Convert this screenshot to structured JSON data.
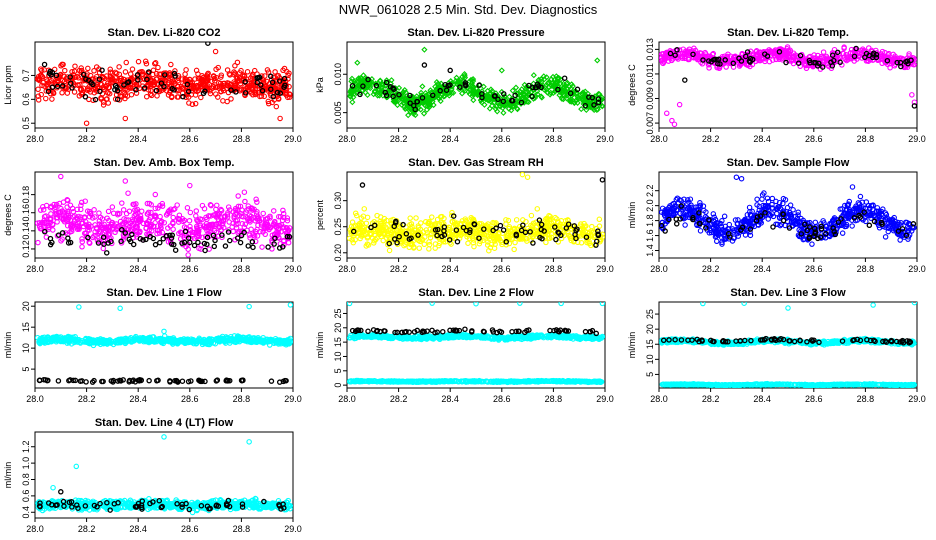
{
  "figure_title": "NWR_061028  2.5 Min. Std. Dev. Diagnostics",
  "colors": {
    "red": "#ff0000",
    "green": "#00cc00",
    "magenta": "#ff00ff",
    "yellow": "#ffff00",
    "blue": "#0000ff",
    "cyan": "#00ffff",
    "black": "#000000"
  },
  "chart_data": [
    {
      "type": "scatter",
      "title": "Stan. Dev. Li-820 CO2",
      "ylabel": "Licor ppm",
      "xlim": [
        28.0,
        29.0
      ],
      "ylim": [
        0.48,
        0.84
      ],
      "x_ticks": [
        "28.0",
        "28.2",
        "28.4",
        "28.6",
        "28.8",
        "29.0"
      ],
      "y_ticks": [
        "0.5",
        "0.6",
        "0.7"
      ],
      "y_tick_values": [
        0.5,
        0.6,
        0.7
      ],
      "series": [
        {
          "name": "main",
          "color": "red",
          "shape": "hex",
          "n": 700,
          "base": 0.665,
          "amp": 0.012,
          "noise": 0.055,
          "outliers": [
            [
              28.2,
              0.5
            ],
            [
              28.35,
              0.52
            ],
            [
              28.7,
              0.8
            ],
            [
              28.95,
              0.52
            ]
          ]
        },
        {
          "name": "black",
          "color": "black",
          "shape": "ring",
          "n": 70,
          "base": 0.665,
          "amp": 0.01,
          "noise": 0.05,
          "outliers": [
            [
              28.67,
              0.835
            ]
          ]
        }
      ]
    },
    {
      "type": "scatter",
      "title": "Stan. Dev. Li-820 Pressure",
      "ylabel": "kPa",
      "xlim": [
        28.0,
        29.0
      ],
      "ylim": [
        0.003,
        0.0142
      ],
      "x_ticks": [
        "28.0",
        "28.2",
        "28.4",
        "28.6",
        "28.8",
        "29.0"
      ],
      "y_ticks": [
        "0.005",
        "0.010"
      ],
      "y_tick_values": [
        0.005,
        0.01
      ],
      "series": [
        {
          "name": "main",
          "color": "green",
          "shape": "diamond",
          "n": 700,
          "base": 0.0075,
          "amp": 0.0012,
          "noise": 0.0011,
          "outliers": [
            [
              28.04,
              0.0115
            ],
            [
              28.3,
              0.0132
            ],
            [
              28.97,
              0.0118
            ],
            [
              28.6,
              0.0105
            ]
          ]
        },
        {
          "name": "black",
          "color": "black",
          "shape": "ring",
          "n": 60,
          "base": 0.0075,
          "amp": 0.001,
          "noise": 0.001,
          "outliers": [
            [
              28.3,
              0.0112
            ],
            [
              28.4,
              0.0105
            ]
          ]
        }
      ]
    },
    {
      "type": "scatter",
      "title": "Stan. Dev. Li-820 Temp.",
      "ylabel": "degrees C",
      "xlim": [
        28.0,
        29.0
      ],
      "ylim": [
        0.0066,
        0.0136
      ],
      "x_ticks": [
        "28.0",
        "28.2",
        "28.4",
        "28.6",
        "28.8",
        "29.0"
      ],
      "y_ticks": [
        "0.007",
        "0.009",
        "0.011",
        "0.013"
      ],
      "y_tick_values": [
        0.007,
        0.009,
        0.011,
        0.013
      ],
      "series": [
        {
          "name": "main",
          "color": "magenta",
          "shape": "hex",
          "n": 650,
          "base": 0.0123,
          "amp": 0.0003,
          "noise": 0.00045,
          "outliers": [
            [
              28.05,
              0.0072
            ],
            [
              28.06,
              0.0069
            ],
            [
              28.03,
              0.0078
            ],
            [
              28.99,
              0.0087
            ],
            [
              28.98,
              0.0093
            ],
            [
              28.08,
              0.0085
            ]
          ]
        },
        {
          "name": "black",
          "color": "black",
          "shape": "ring",
          "n": 60,
          "base": 0.0123,
          "amp": 0.0003,
          "noise": 0.0004,
          "outliers": [
            [
              28.99,
              0.0084
            ],
            [
              28.1,
              0.0105
            ]
          ]
        }
      ]
    },
    {
      "type": "scatter",
      "title": "Stan. Dev. Amb. Box Temp.",
      "ylabel": "degrees C",
      "xlim": [
        28.0,
        29.0
      ],
      "ylim": [
        0.11,
        0.205
      ],
      "x_ticks": [
        "28.0",
        "28.2",
        "28.4",
        "28.6",
        "28.8",
        "29.0"
      ],
      "y_ticks": [
        "0.12",
        "0.14",
        "0.16",
        "0.18"
      ],
      "y_tick_values": [
        0.12,
        0.14,
        0.16,
        0.18
      ],
      "series": [
        {
          "name": "main",
          "color": "magenta",
          "shape": "hex",
          "n": 650,
          "base": 0.148,
          "amp": 0.006,
          "noise": 0.018,
          "outliers": [
            [
              28.1,
              0.2
            ],
            [
              28.35,
              0.195
            ],
            [
              28.6,
              0.19
            ]
          ]
        },
        {
          "name": "black",
          "color": "black",
          "shape": "ring",
          "n": 70,
          "base": 0.13,
          "amp": 0.004,
          "noise": 0.01,
          "outliers": []
        }
      ]
    },
    {
      "type": "scatter",
      "title": "Stan. Dev. Gas Stream RH",
      "ylabel": "percent",
      "xlim": [
        28.0,
        29.0
      ],
      "ylim": [
        0.19,
        0.355
      ],
      "x_ticks": [
        "28.0",
        "28.2",
        "28.4",
        "28.6",
        "28.8",
        "29.0"
      ],
      "y_ticks": [
        "0.20",
        "0.25",
        "0.30"
      ],
      "y_tick_values": [
        0.2,
        0.25,
        0.3
      ],
      "series": [
        {
          "name": "main",
          "color": "yellow",
          "shape": "hex",
          "n": 700,
          "base": 0.24,
          "amp": 0.006,
          "noise": 0.022,
          "outliers": [
            [
              28.68,
              0.35
            ],
            [
              28.7,
              0.345
            ]
          ]
        },
        {
          "name": "black",
          "color": "black",
          "shape": "ring",
          "n": 70,
          "base": 0.24,
          "amp": 0.005,
          "noise": 0.02,
          "outliers": [
            [
              28.06,
              0.33
            ],
            [
              28.99,
              0.34
            ]
          ]
        }
      ]
    },
    {
      "type": "scatter",
      "title": "Stan. Dev. Sample Flow",
      "ylabel": "ml/min",
      "xlim": [
        28.0,
        29.0
      ],
      "ylim": [
        1.3,
        2.45
      ],
      "x_ticks": [
        "28.0",
        "28.2",
        "28.4",
        "28.6",
        "28.8",
        "29.0"
      ],
      "y_ticks": [
        "1.4",
        "1.6",
        "1.8",
        "2.0",
        "2.2"
      ],
      "y_tick_values": [
        1.4,
        1.6,
        1.8,
        2.0,
        2.2
      ],
      "series": [
        {
          "name": "main",
          "color": "blue",
          "shape": "hex",
          "n": 650,
          "base": 1.8,
          "amp": 0.15,
          "noise": 0.14,
          "outliers": [
            [
              28.3,
              2.38
            ],
            [
              28.32,
              2.36
            ],
            [
              28.75,
              2.25
            ]
          ]
        },
        {
          "name": "black",
          "color": "black",
          "shape": "ring",
          "n": 60,
          "base": 1.75,
          "amp": 0.12,
          "noise": 0.12,
          "outliers": []
        }
      ]
    },
    {
      "type": "scatter",
      "title": "Stan. Dev. Line 1 Flow",
      "ylabel": "ml/min",
      "xlim": [
        28.0,
        29.0
      ],
      "ylim": [
        0.5,
        21.0
      ],
      "x_ticks": [
        "28.0",
        "28.2",
        "28.4",
        "28.6",
        "28.8",
        "29.0"
      ],
      "y_ticks": [
        "5",
        "10",
        "15",
        "20"
      ],
      "y_tick_values": [
        5,
        10,
        15,
        20
      ],
      "series": [
        {
          "name": "main",
          "color": "cyan",
          "shape": "hex",
          "n": 700,
          "base": 11.8,
          "amp": 0.3,
          "noise": 0.6,
          "outliers": [
            [
              28.17,
              19.8
            ],
            [
              28.33,
              19.5
            ],
            [
              28.83,
              19.9
            ],
            [
              28.99,
              20.3
            ],
            [
              28.5,
              14.0
            ]
          ]
        },
        {
          "name": "black",
          "color": "black",
          "shape": "ring",
          "n": 70,
          "base": 2.2,
          "amp": 0.1,
          "noise": 0.2,
          "outliers": []
        }
      ]
    },
    {
      "type": "scatter",
      "title": "Stan. Dev. Line 2 Flow",
      "ylabel": "ml/min",
      "xlim": [
        28.0,
        29.0
      ],
      "ylim": [
        -1.0,
        29.0
      ],
      "x_ticks": [
        "28.0",
        "28.2",
        "28.4",
        "28.6",
        "28.8",
        "29.0"
      ],
      "y_ticks": [
        "0",
        "5",
        "10",
        "15",
        "20",
        "25"
      ],
      "y_tick_values": [
        0,
        5,
        10,
        15,
        20,
        25
      ],
      "series": [
        {
          "name": "main",
          "color": "cyan",
          "shape": "hex",
          "n": 600,
          "base": 16.8,
          "amp": 0.3,
          "noise": 0.5,
          "outliers": [
            [
              28.01,
              28.5
            ],
            [
              28.33,
              28.6
            ],
            [
              28.5,
              28.4
            ],
            [
              28.67,
              28.6
            ],
            [
              28.83,
              28.5
            ],
            [
              28.99,
              28.5
            ]
          ]
        },
        {
          "name": "bottom",
          "color": "cyan",
          "shape": "hex",
          "n": 500,
          "base": 1.3,
          "amp": 0.1,
          "noise": 0.2,
          "outliers": []
        },
        {
          "name": "black",
          "color": "black",
          "shape": "ring",
          "n": 70,
          "base": 18.8,
          "amp": 0.2,
          "noise": 0.4,
          "outliers": []
        }
      ]
    },
    {
      "type": "scatter",
      "title": "Stan. Dev. Line 3 Flow",
      "ylabel": "ml/min",
      "xlim": [
        28.0,
        29.0
      ],
      "ylim": [
        0.5,
        29.0
      ],
      "x_ticks": [
        "28.0",
        "28.2",
        "28.4",
        "28.6",
        "28.8",
        "29.0"
      ],
      "y_ticks": [
        "5",
        "10",
        "15",
        "20",
        "25"
      ],
      "y_tick_values": [
        5,
        10,
        15,
        20,
        25
      ],
      "series": [
        {
          "name": "main",
          "color": "cyan",
          "shape": "hex",
          "n": 600,
          "base": 15.8,
          "amp": 0.4,
          "noise": 0.5,
          "outliers": [
            [
              28.17,
              28.5
            ],
            [
              28.33,
              28.6
            ],
            [
              28.5,
              27.0
            ],
            [
              28.83,
              28.0
            ],
            [
              28.99,
              28.8
            ]
          ]
        },
        {
          "name": "bottom",
          "color": "cyan",
          "shape": "hex",
          "n": 500,
          "base": 1.6,
          "amp": 0.1,
          "noise": 0.15,
          "outliers": []
        },
        {
          "name": "black",
          "color": "black",
          "shape": "ring",
          "n": 70,
          "base": 16.2,
          "amp": 0.3,
          "noise": 0.4,
          "outliers": []
        }
      ]
    },
    {
      "type": "scatter",
      "title": "Stan. Dev. Line 4 (LT) Flow",
      "ylabel": "ml/min",
      "xlim": [
        28.0,
        29.0
      ],
      "ylim": [
        0.33,
        1.38
      ],
      "x_ticks": [
        "28.0",
        "28.2",
        "28.4",
        "28.6",
        "28.8",
        "29.0"
      ],
      "y_ticks": [
        "0.4",
        "0.6",
        "0.8",
        "1.0",
        "1.2"
      ],
      "y_tick_values": [
        0.4,
        0.6,
        0.8,
        1.0,
        1.2
      ],
      "series": [
        {
          "name": "main",
          "color": "cyan",
          "shape": "hex",
          "n": 700,
          "base": 0.49,
          "amp": 0.01,
          "noise": 0.045,
          "outliers": [
            [
              28.16,
              0.96
            ],
            [
              28.5,
              1.32
            ],
            [
              28.83,
              1.26
            ],
            [
              28.07,
              0.7
            ]
          ]
        },
        {
          "name": "black",
          "color": "black",
          "shape": "ring",
          "n": 60,
          "base": 0.49,
          "amp": 0.01,
          "noise": 0.045,
          "outliers": [
            [
              28.1,
              0.65
            ]
          ]
        }
      ]
    }
  ]
}
